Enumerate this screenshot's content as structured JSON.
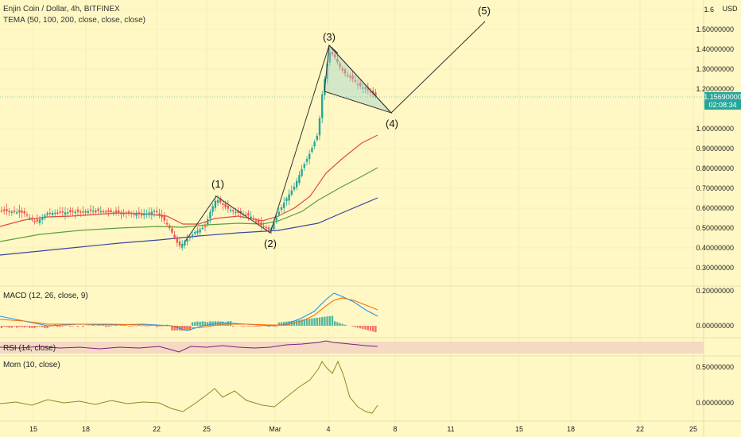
{
  "header": {
    "symbol": "Enjin Coin / Dollar, 4h, BITFINEX",
    "indicator": "TEMA (50, 100, 200, close, close, close)"
  },
  "price_axis": {
    "unit": "USD",
    "ticks": [
      "1.60000000",
      "1.50000000",
      "1.40000000",
      "1.30000000",
      "1.20000000",
      "1.00000000",
      "0.90000000",
      "0.80000000",
      "0.70000000",
      "0.60000000",
      "0.50000000",
      "0.40000000",
      "0.30000000"
    ],
    "last_price": "1.15690000",
    "countdown": "02:08:34"
  },
  "macd_panel": {
    "title": "MACD (12, 26, close, 9)",
    "ticks": [
      "0.20000000",
      "0.00000000"
    ]
  },
  "rsi_panel": {
    "title": "RSI (14, close)"
  },
  "mom_panel": {
    "title": "Mom (10, close)",
    "ticks": [
      "0.50000000",
      "0.00000000"
    ]
  },
  "time_axis": {
    "ticks": [
      "15",
      "18",
      "22",
      "25",
      "Mar",
      "4",
      "8",
      "11",
      "15",
      "18",
      "22",
      "25"
    ]
  },
  "colors": {
    "background": "#fff8c4",
    "up": "#26a69a",
    "down": "#ef5350",
    "tema50": "#e8473d",
    "tema100": "#5aa03a",
    "tema200": "#3b46a0",
    "mom": "#8a8a2a",
    "rsi": "#7b1f86",
    "price_badge": "#26a69a"
  },
  "chart_data": [
    {
      "type": "line",
      "title": "Enjin Coin / Dollar, 4h, BITFINEX",
      "scale": "log",
      "series": [
        {
          "name": "Elliott wave",
          "points": [
            {
              "x": "Feb 25 06:00",
              "y": 0.66,
              "label": "(1)"
            },
            {
              "x": "Feb 28 12:00",
              "y": 0.48,
              "label": "(2)"
            },
            {
              "x": "Mar 4 00:00",
              "y": 1.43,
              "label": "(3)"
            },
            {
              "x": "Mar 7 12:00",
              "y": 1.07,
              "label": "(4)"
            },
            {
              "x": "Mar 13 12:00",
              "y": 1.55,
              "label": "(5)"
            }
          ]
        },
        {
          "name": "wedge",
          "points": [
            {
              "x": "Mar 4 00:00",
              "y": 1.42
            },
            {
              "x": "Mar 4 00:00",
              "y": 1.2
            },
            {
              "x": "Mar 7 12:00",
              "y": 1.07
            }
          ]
        }
      ],
      "last_price": 1.1569
    },
    {
      "type": "line",
      "title": "MACD (12, 26, close, 9)"
    },
    {
      "type": "line",
      "title": "RSI (14, close)"
    },
    {
      "type": "line",
      "title": "Mom (10, close)"
    }
  ]
}
